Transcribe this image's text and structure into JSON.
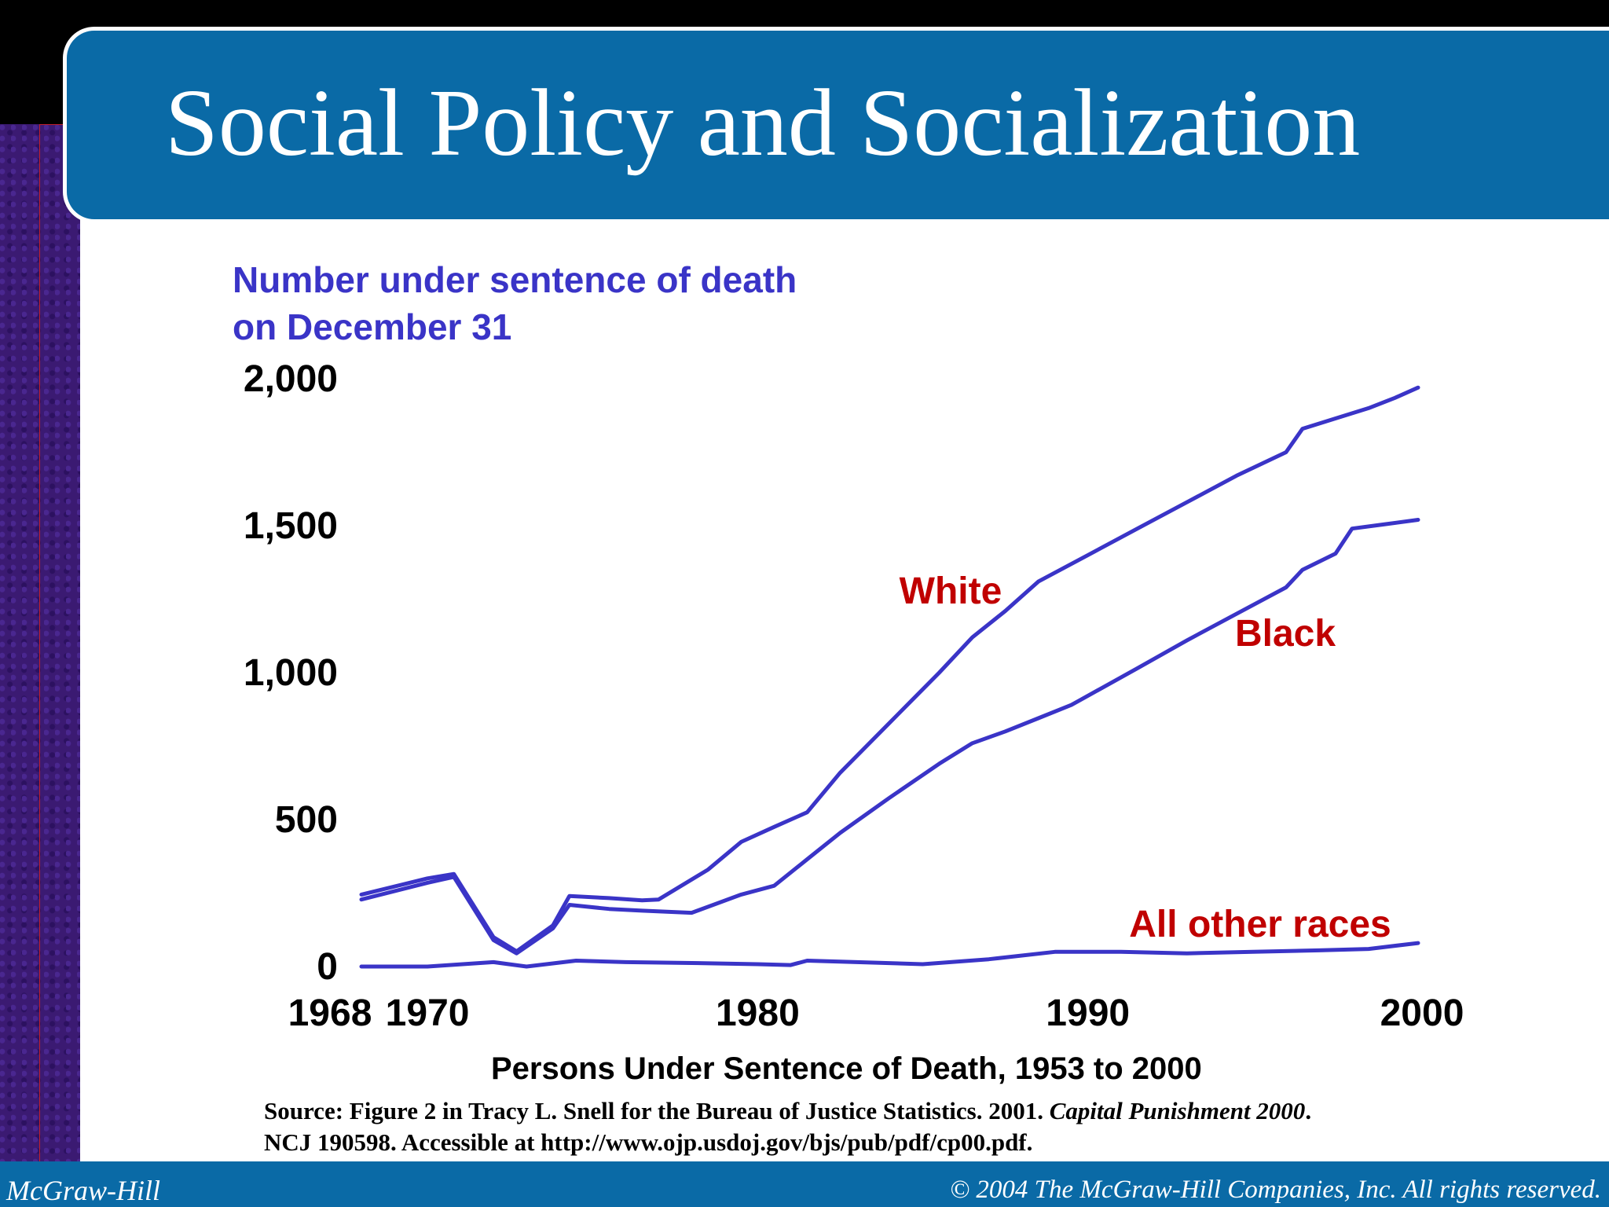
{
  "slide": {
    "title": "Social Policy and Socialization",
    "footer_left": "McGraw-Hill",
    "footer_right": "© 2004 The McGraw-Hill Companies, Inc. All rights reserved.",
    "source_line1_a": "Source: Figure 2 in Tracy L. Snell for the Bureau of Justice Statistics. 2001. ",
    "source_line1_b": "Capital Punishment 2000",
    "source_line1_c": ".",
    "source_line2": "NCJ 190598. Accessible at http://www.ojp.usdoj.gov/bjs/pub/pdf/cp00.pdf."
  },
  "colors": {
    "series_line": "#3a34c7",
    "series_label": "#c00000",
    "title_bar": "#0a6aa6"
  },
  "chart_data": {
    "type": "line",
    "ylabel_line1": "Number under sentence of death",
    "ylabel_line2": "on December 31",
    "subtitle": "Persons Under Sentence of Death, 1953 to 2000",
    "ylim": [
      0,
      2000
    ],
    "xlim": [
      1968,
      2000
    ],
    "y_ticks": [
      {
        "value": 0,
        "label": "0"
      },
      {
        "value": 500,
        "label": "500"
      },
      {
        "value": 1000,
        "label": "1,000"
      },
      {
        "value": 1500,
        "label": "1,500"
      },
      {
        "value": 2000,
        "label": "2,000"
      }
    ],
    "x_ticks": [
      {
        "value": 1968,
        "label": "1968"
      },
      {
        "value": 1970,
        "label": "1970"
      },
      {
        "value": 1980,
        "label": "1980"
      },
      {
        "value": 1990,
        "label": "1990"
      },
      {
        "value": 2000,
        "label": "2000"
      }
    ],
    "grid": false,
    "series": [
      {
        "name": "White",
        "x": [
          1968,
          1970,
          1970.8,
          1972,
          1972.7,
          1973.8,
          1974.3,
          1975.5,
          1976.5,
          1977,
          1978.5,
          1979.5,
          1980.5,
          1981.5,
          1982.5,
          1984,
          1985.5,
          1986.5,
          1987.5,
          1988.5,
          1990,
          1991.5,
          1993,
          1994.5,
          1996,
          1996.5,
          1997.5,
          1998.5,
          1999.3,
          2000
        ],
        "values": [
          245,
          300,
          315,
          100,
          52,
          140,
          240,
          233,
          225,
          228,
          330,
          424,
          475,
          525,
          660,
          830,
          1000,
          1120,
          1210,
          1310,
          1400,
          1490,
          1580,
          1670,
          1750,
          1830,
          1865,
          1900,
          1935,
          1970
        ]
      },
      {
        "name": "Black",
        "x": [
          1968,
          1970,
          1970.8,
          1972,
          1972.7,
          1973.8,
          1974.3,
          1975.5,
          1976.5,
          1978,
          1979.5,
          1980.5,
          1981.5,
          1982.5,
          1984,
          1985.5,
          1986.5,
          1987.5,
          1988.5,
          1989.5,
          1991.5,
          1993,
          1994.5,
          1996,
          1996.5,
          1997.5,
          1998,
          1999,
          2000
        ],
        "values": [
          228,
          285,
          305,
          90,
          45,
          130,
          210,
          196,
          190,
          183,
          245,
          275,
          365,
          455,
          575,
          690,
          760,
          800,
          845,
          890,
          1015,
          1110,
          1200,
          1290,
          1350,
          1405,
          1490,
          1505,
          1520
        ]
      },
      {
        "name": "All other races",
        "x": [
          1968,
          1970,
          1972,
          1973,
          1974.5,
          1976,
          1978,
          1980,
          1981,
          1981.5,
          1983,
          1985,
          1987,
          1989,
          1991,
          1993,
          1995,
          1997,
          1998.5,
          2000
        ],
        "values": [
          0,
          0,
          15,
          0,
          20,
          15,
          12,
          8,
          5,
          20,
          15,
          8,
          25,
          50,
          50,
          45,
          50,
          55,
          60,
          80
        ]
      }
    ]
  }
}
